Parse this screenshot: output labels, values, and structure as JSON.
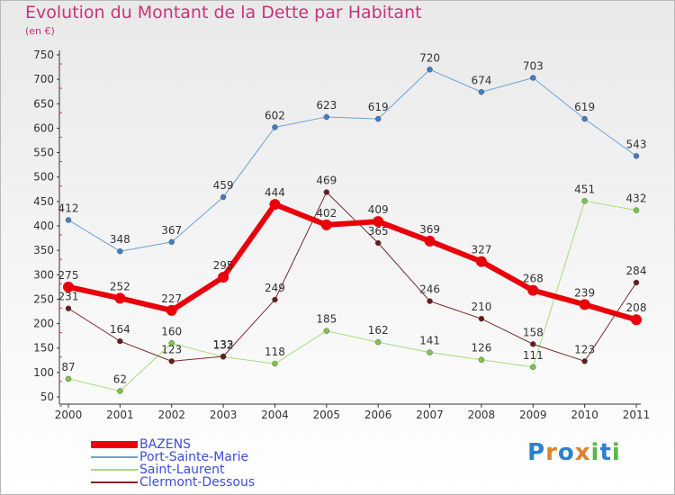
{
  "header": {
    "title": "Evolution du Montant de la Dette par Habitant",
    "unit": "(en €)"
  },
  "brand": {
    "name": "Proxiti",
    "letters": [
      "P",
      "r",
      "o",
      "x",
      "i",
      "t",
      "i"
    ],
    "colors": [
      "#2f7fd0",
      "#e0822c",
      "#2f7fd0",
      "#e0822c",
      "#58b848",
      "#2f7fd0",
      "#58b848"
    ]
  },
  "chart_data": {
    "type": "line",
    "categories": [
      "2000",
      "2001",
      "2002",
      "2003",
      "2004",
      "2005",
      "2006",
      "2007",
      "2008",
      "2009",
      "2010",
      "2011"
    ],
    "ylim": [
      50,
      750
    ],
    "yticks": [
      50,
      100,
      150,
      200,
      250,
      300,
      350,
      400,
      450,
      500,
      550,
      600,
      650,
      700,
      750
    ],
    "grid": false,
    "legend_position": "bottom-left",
    "series": [
      {
        "name": "BAZENS",
        "color": "#e8000b",
        "marker": "#e8000b",
        "width": 6,
        "values": [
          275,
          252,
          227,
          295,
          444,
          402,
          409,
          369,
          327,
          268,
          239,
          208
        ]
      },
      {
        "name": "Port-Sainte-Marie",
        "color": "#6fa0d6",
        "marker": "#3e7fc4",
        "width": 1,
        "values": [
          412,
          348,
          367,
          459,
          602,
          623,
          619,
          720,
          674,
          703,
          619,
          543
        ]
      },
      {
        "name": "Saint-Laurent",
        "color": "#a6de7a",
        "marker": "#7cc648",
        "width": 1,
        "values": [
          87,
          62,
          160,
          132,
          118,
          185,
          162,
          141,
          126,
          111,
          451,
          432
        ]
      },
      {
        "name": "Clermont-Dessous",
        "color": "#7a2a2a",
        "marker": "#6a1a1a",
        "width": 1,
        "values": [
          231,
          164,
          123,
          133,
          249,
          469,
          365,
          246,
          210,
          158,
          123,
          284
        ]
      }
    ],
    "data_labels": [
      [
        "275",
        "252",
        "227",
        "295",
        "444",
        "402",
        "409",
        "369",
        "327",
        "268",
        "239",
        "208"
      ],
      [
        "412",
        "348",
        "367",
        "459",
        "602",
        "623",
        "619",
        "720",
        "674",
        "703",
        "619",
        "543"
      ],
      [
        "87",
        "62",
        "160",
        "132",
        "118",
        "185",
        "162",
        "141",
        "126",
        "111",
        "451",
        "432"
      ],
      [
        "231",
        "164",
        "123",
        "133",
        "249",
        "469",
        "365",
        "246",
        "210",
        "158",
        "123",
        "284"
      ]
    ]
  }
}
